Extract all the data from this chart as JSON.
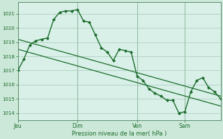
{
  "background_color": "#cce8d8",
  "plot_bg_color": "#d8f0e8",
  "grid_color": "#a8c8b8",
  "line_color": "#1a6b2a",
  "marker_color": "#1a6b2a",
  "xlabel": "Pression niveau de la mer( hPa )",
  "ylim": [
    1013.5,
    1021.8
  ],
  "yticks": [
    1014,
    1015,
    1016,
    1017,
    1018,
    1019,
    1020,
    1021
  ],
  "xtick_labels": [
    "Jeu",
    "Dim",
    "Ven",
    "Sam"
  ],
  "xtick_positions": [
    0,
    10,
    20,
    28
  ],
  "xlim": [
    0,
    34
  ],
  "series1_x": [
    0,
    1,
    2,
    3,
    4,
    5,
    6,
    7,
    8,
    9,
    10,
    11,
    12,
    13,
    14,
    15,
    16,
    17,
    18,
    19,
    20,
    21,
    22,
    23,
    24,
    25,
    26,
    27,
    28,
    29,
    30,
    31,
    32,
    33,
    34
  ],
  "series1_y": [
    1017.0,
    1017.8,
    1018.8,
    1019.1,
    1019.2,
    1019.3,
    1020.6,
    1021.1,
    1021.2,
    1021.2,
    1021.3,
    1020.5,
    1020.4,
    1019.5,
    1018.6,
    1018.3,
    1017.7,
    1018.5,
    1018.4,
    1018.3,
    1016.6,
    1016.3,
    1015.7,
    1015.4,
    1015.2,
    1014.9,
    1014.9,
    1014.0,
    1014.1,
    1015.5,
    1016.3,
    1016.5,
    1015.8,
    1015.5,
    1015.0
  ],
  "series2_x": [
    0,
    34
  ],
  "series2_y": [
    1019.2,
    1015.2
  ],
  "series3_x": [
    0,
    34
  ],
  "series3_y": [
    1018.5,
    1014.5
  ],
  "vline_positions": [
    0,
    10,
    20,
    28
  ],
  "figsize": [
    3.2,
    2.0
  ],
  "dpi": 100
}
